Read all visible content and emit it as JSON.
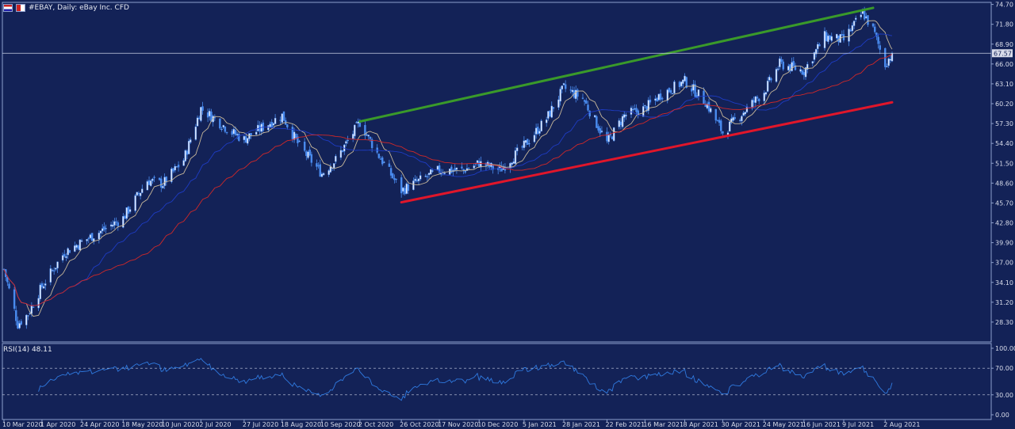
{
  "header": {
    "symbol_title": "#EBAY, Daily:  eBay Inc. CFD",
    "current_price_tag": "67.57"
  },
  "colors": {
    "background": "#132257",
    "candle": "#4a8cf0",
    "ma_fast": "#c8b89a",
    "ma_mid": "#1e3cc4",
    "ma_slow": "#d02828",
    "upper_trendline": "#3a9a2a",
    "lower_trendline": "#e0162a",
    "rsi_line": "#2f7ae0"
  },
  "rsi": {
    "label": "RSI(14) 48.11",
    "y_ticks": [
      "100.00",
      "70.00",
      "30.00",
      "0.00"
    ]
  },
  "chart_data": {
    "type": "candlestick",
    "instrument": "#EBAY",
    "timeframe": "Daily",
    "y_ticks": [
      "74.70",
      "71.80",
      "68.90",
      "66.00",
      "63.10",
      "60.20",
      "57.30",
      "54.40",
      "51.50",
      "48.60",
      "45.70",
      "42.80",
      "39.90",
      "37.00",
      "34.10",
      "31.20",
      "28.30"
    ],
    "ylim": [
      25.4,
      75.0
    ],
    "x_ticks": [
      "10 Mar 2020",
      "1 Apr 2020",
      "24 Apr 2020",
      "18 May 2020",
      "10 Jun 2020",
      "2 Jul 2020",
      "27 Jul 2020",
      "18 Aug 2020",
      "10 Sep 2020",
      "2 Oct 2020",
      "26 Oct 2020",
      "17 Nov 2020",
      "10 Dec 2020",
      "5 Jan 2021",
      "28 Jan 2021",
      "22 Feb 2021",
      "16 Mar 2021",
      "8 Apr 2021",
      "30 Apr 2021",
      "24 May 2021",
      "16 Jun 2021",
      "9 Jul 2021",
      "2 Aug 2021"
    ],
    "price_path": [
      [
        "10 Mar 2020",
        36.0
      ],
      [
        "18 Mar 2020",
        28.0
      ],
      [
        "24 Mar 2020",
        29.5
      ],
      [
        "1 Apr 2020",
        33.5
      ],
      [
        "14 Apr 2020",
        38.5
      ],
      [
        "24 Apr 2020",
        40.0
      ],
      [
        "8 May 2020",
        42.0
      ],
      [
        "18 May 2020",
        43.5
      ],
      [
        "1 Jun 2020",
        49.0
      ],
      [
        "10 Jun 2020",
        48.5
      ],
      [
        "22 Jun 2020",
        52.0
      ],
      [
        "2 Jul 2020",
        59.5
      ],
      [
        "10 Jul 2020",
        58.0
      ],
      [
        "20 Jul 2020",
        56.0
      ],
      [
        "27 Jul 2020",
        55.0
      ],
      [
        "5 Aug 2020",
        56.5
      ],
      [
        "18 Aug 2020",
        58.5
      ],
      [
        "28 Aug 2020",
        54.0
      ],
      [
        "10 Sep 2020",
        50.0
      ],
      [
        "18 Sep 2020",
        52.0
      ],
      [
        "2 Oct 2020",
        57.5
      ],
      [
        "12 Oct 2020",
        53.0
      ],
      [
        "26 Oct 2020",
        47.5
      ],
      [
        "2 Nov 2020",
        48.5
      ],
      [
        "17 Nov 2020",
        50.5
      ],
      [
        "1 Dec 2020",
        50.5
      ],
      [
        "10 Dec 2020",
        51.5
      ],
      [
        "22 Dec 2020",
        50.5
      ],
      [
        "5 Jan 2021",
        54.0
      ],
      [
        "18 Jan 2021",
        58.0
      ],
      [
        "28 Jan 2021",
        62.5
      ],
      [
        "8 Feb 2021",
        61.0
      ],
      [
        "22 Feb 2021",
        54.5
      ],
      [
        "4 Mar 2021",
        58.5
      ],
      [
        "16 Mar 2021",
        59.5
      ],
      [
        "25 Mar 2021",
        61.5
      ],
      [
        "8 Apr 2021",
        63.5
      ],
      [
        "20 Apr 2021",
        60.5
      ],
      [
        "30 Apr 2021",
        56.0
      ],
      [
        "12 May 2021",
        59.0
      ],
      [
        "24 May 2021",
        62.0
      ],
      [
        "2 Jun 2021",
        66.0
      ],
      [
        "16 Jun 2021",
        65.0
      ],
      [
        "28 Jun 2021",
        70.0
      ],
      [
        "9 Jul 2021",
        69.5
      ],
      [
        "20 Jul 2021",
        73.5
      ],
      [
        "26 Jul 2021",
        71.0
      ],
      [
        "2 Aug 2021",
        66.0
      ],
      [
        "6 Aug 2021",
        67.57
      ]
    ],
    "last_price": 67.57,
    "moving_averages": [
      "fast (tan)",
      "mid (blue)",
      "slow (red)"
    ],
    "trendlines": [
      {
        "name": "upper",
        "from": [
          "2 Oct 2020",
          57.6
        ],
        "to": [
          "26 Jul 2021",
          74.2
        ]
      },
      {
        "name": "lower",
        "from": [
          "26 Oct 2020",
          45.8
        ],
        "to": [
          "6 Aug 2021",
          60.4
        ]
      }
    ],
    "rsi": {
      "period": 14,
      "last": 48.11,
      "levels": [
        70,
        30
      ],
      "ylim": [
        0,
        100
      ]
    }
  }
}
